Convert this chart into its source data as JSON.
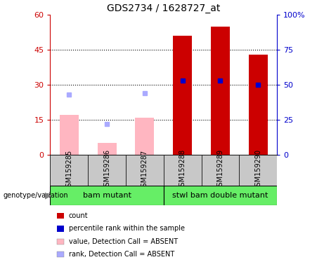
{
  "title": "GDS2734 / 1628727_at",
  "samples": [
    "GSM159285",
    "GSM159286",
    "GSM159287",
    "GSM159288",
    "GSM159289",
    "GSM159290"
  ],
  "group1_label": "bam mutant",
  "group2_label": "stwl bam double mutant",
  "group1_indices": [
    0,
    1,
    2
  ],
  "group2_indices": [
    3,
    4,
    5
  ],
  "count_values": [
    null,
    null,
    null,
    51,
    55,
    43
  ],
  "count_color": "#CC0000",
  "absent_value_values": [
    17,
    5,
    16,
    null,
    null,
    null
  ],
  "absent_value_color": "#FFB6C1",
  "percentile_rank_values": [
    null,
    null,
    null,
    53,
    53,
    50
  ],
  "percentile_rank_color": "#0000CC",
  "absent_rank_values": [
    43,
    22,
    44,
    null,
    null,
    null
  ],
  "absent_rank_color": "#AAAAFF",
  "ylim_left": [
    0,
    60
  ],
  "ylim_right": [
    0,
    100
  ],
  "yticks_left": [
    0,
    15,
    30,
    45,
    60
  ],
  "yticks_right": [
    0,
    25,
    50,
    75,
    100
  ],
  "ytick_labels_left": [
    "0",
    "15",
    "30",
    "45",
    "60"
  ],
  "ytick_labels_right": [
    "0",
    "25",
    "50",
    "75",
    "100%"
  ],
  "left_axis_color": "#CC0000",
  "right_axis_color": "#0000CC",
  "bar_width": 0.5,
  "marker_size": 5,
  "background_label": "#C8C8C8",
  "background_group": "#66EE66",
  "legend_items": [
    {
      "label": "count",
      "color": "#CC0000"
    },
    {
      "label": "percentile rank within the sample",
      "color": "#0000CC"
    },
    {
      "label": "value, Detection Call = ABSENT",
      "color": "#FFB6C1"
    },
    {
      "label": "rank, Detection Call = ABSENT",
      "color": "#AAAAFF"
    }
  ]
}
